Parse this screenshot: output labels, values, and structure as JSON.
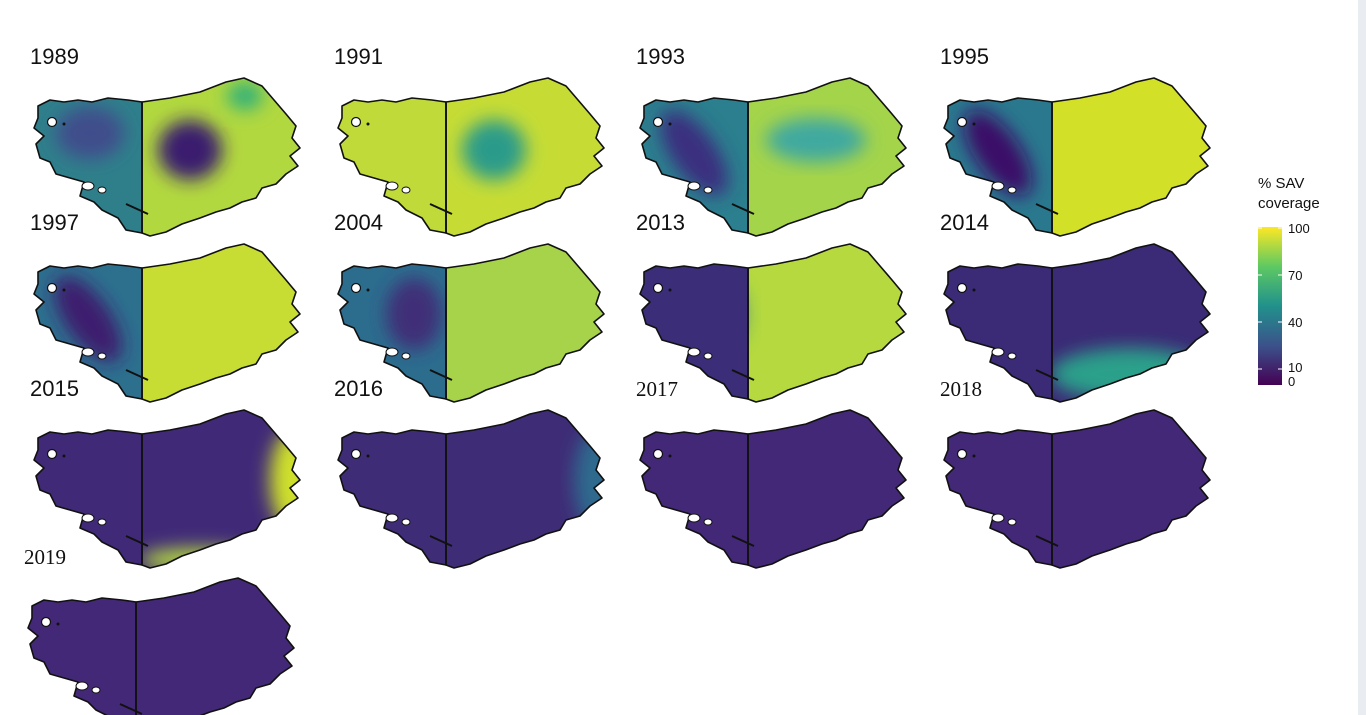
{
  "legend": {
    "title_line1": "% SAV",
    "title_line2": "coverage",
    "ticks": [
      "100",
      "70",
      "40",
      "10",
      "0"
    ],
    "colors": [
      "#fde725",
      "#5ec962",
      "#21918c",
      "#3b528b",
      "#440154"
    ]
  },
  "panels": [
    {
      "year": "1989",
      "label_style": "sans",
      "west_base": "#2f7f8b",
      "east_base": "#b2d83f",
      "west_blobs": [
        {
          "where": "upper-center",
          "color": "#3f4e8c"
        }
      ],
      "east_blobs": [
        {
          "where": "center-left",
          "color": "#3a1a6e"
        },
        {
          "where": "top-right",
          "color": "#2fb07a"
        }
      ]
    },
    {
      "year": "1991",
      "label_style": "sans",
      "west_base": "#c0da3a",
      "east_base": "#c6dc35",
      "west_blobs": [],
      "east_blobs": [
        {
          "where": "center-left",
          "color": "#2a9b8a"
        }
      ]
    },
    {
      "year": "1993",
      "label_style": "sans",
      "west_base": "#2b7f8e",
      "east_base": "#a4d44a",
      "west_blobs": [
        {
          "where": "diagonal",
          "color": "#3a2f7f"
        }
      ],
      "east_blobs": [
        {
          "where": "center",
          "color": "#3fa9a0"
        }
      ]
    },
    {
      "year": "1995",
      "label_style": "sans",
      "west_base": "#2a788e",
      "east_base": "#d2e028",
      "west_blobs": [
        {
          "where": "diagonal",
          "color": "#3b1168"
        }
      ],
      "east_blobs": []
    },
    {
      "year": "1997",
      "label_style": "sans",
      "west_base": "#2d708e",
      "east_base": "#c7dd34",
      "west_blobs": [
        {
          "where": "diagonal",
          "color": "#3e1a6e"
        }
      ],
      "east_blobs": []
    },
    {
      "year": "2004",
      "label_style": "sans",
      "west_base": "#2c6d8e",
      "east_base": "#a7d34a",
      "west_blobs": [
        {
          "where": "upper-right",
          "color": "#3f2e78"
        }
      ],
      "east_blobs": [
        {
          "where": "upper-center",
          "color": "#2c7f96"
        }
      ]
    },
    {
      "year": "2013",
      "label_style": "sans",
      "west_base": "#3b2d78",
      "east_base": "#b5d93f",
      "west_blobs": [],
      "east_blobs": [
        {
          "where": "upper-right",
          "color": "#2f7f92"
        }
      ]
    },
    {
      "year": "2014",
      "label_style": "sans",
      "west_base": "#3b2a76",
      "east_base": "#3b2a76",
      "west_blobs": [],
      "east_blobs": [
        {
          "where": "lower-right-rim",
          "color": "#2ba08a"
        }
      ]
    },
    {
      "year": "2015",
      "label_style": "sans",
      "west_base": "#402a78",
      "east_base": "#402a78",
      "west_blobs": [],
      "east_blobs": [
        {
          "where": "right-edge",
          "color": "#cfe02b"
        },
        {
          "where": "bottom-edge",
          "color": "#b5d93f"
        }
      ]
    },
    {
      "year": "2016",
      "label_style": "sans",
      "west_base": "#3f2c77",
      "east_base": "#3f2c77",
      "west_blobs": [],
      "east_blobs": [
        {
          "where": "right-edge",
          "color": "#2f6a8e"
        }
      ]
    },
    {
      "year": "2017",
      "label_style": "serif",
      "west_base": "#432877",
      "east_base": "#432877",
      "west_blobs": [],
      "east_blobs": []
    },
    {
      "year": "2018",
      "label_style": "serif",
      "west_base": "#432877",
      "east_base": "#432877",
      "west_blobs": [],
      "east_blobs": []
    },
    {
      "year": "2019",
      "label_style": "serif",
      "west_base": "#432877",
      "east_base": "#432877",
      "west_blobs": [],
      "east_blobs": []
    }
  ]
}
